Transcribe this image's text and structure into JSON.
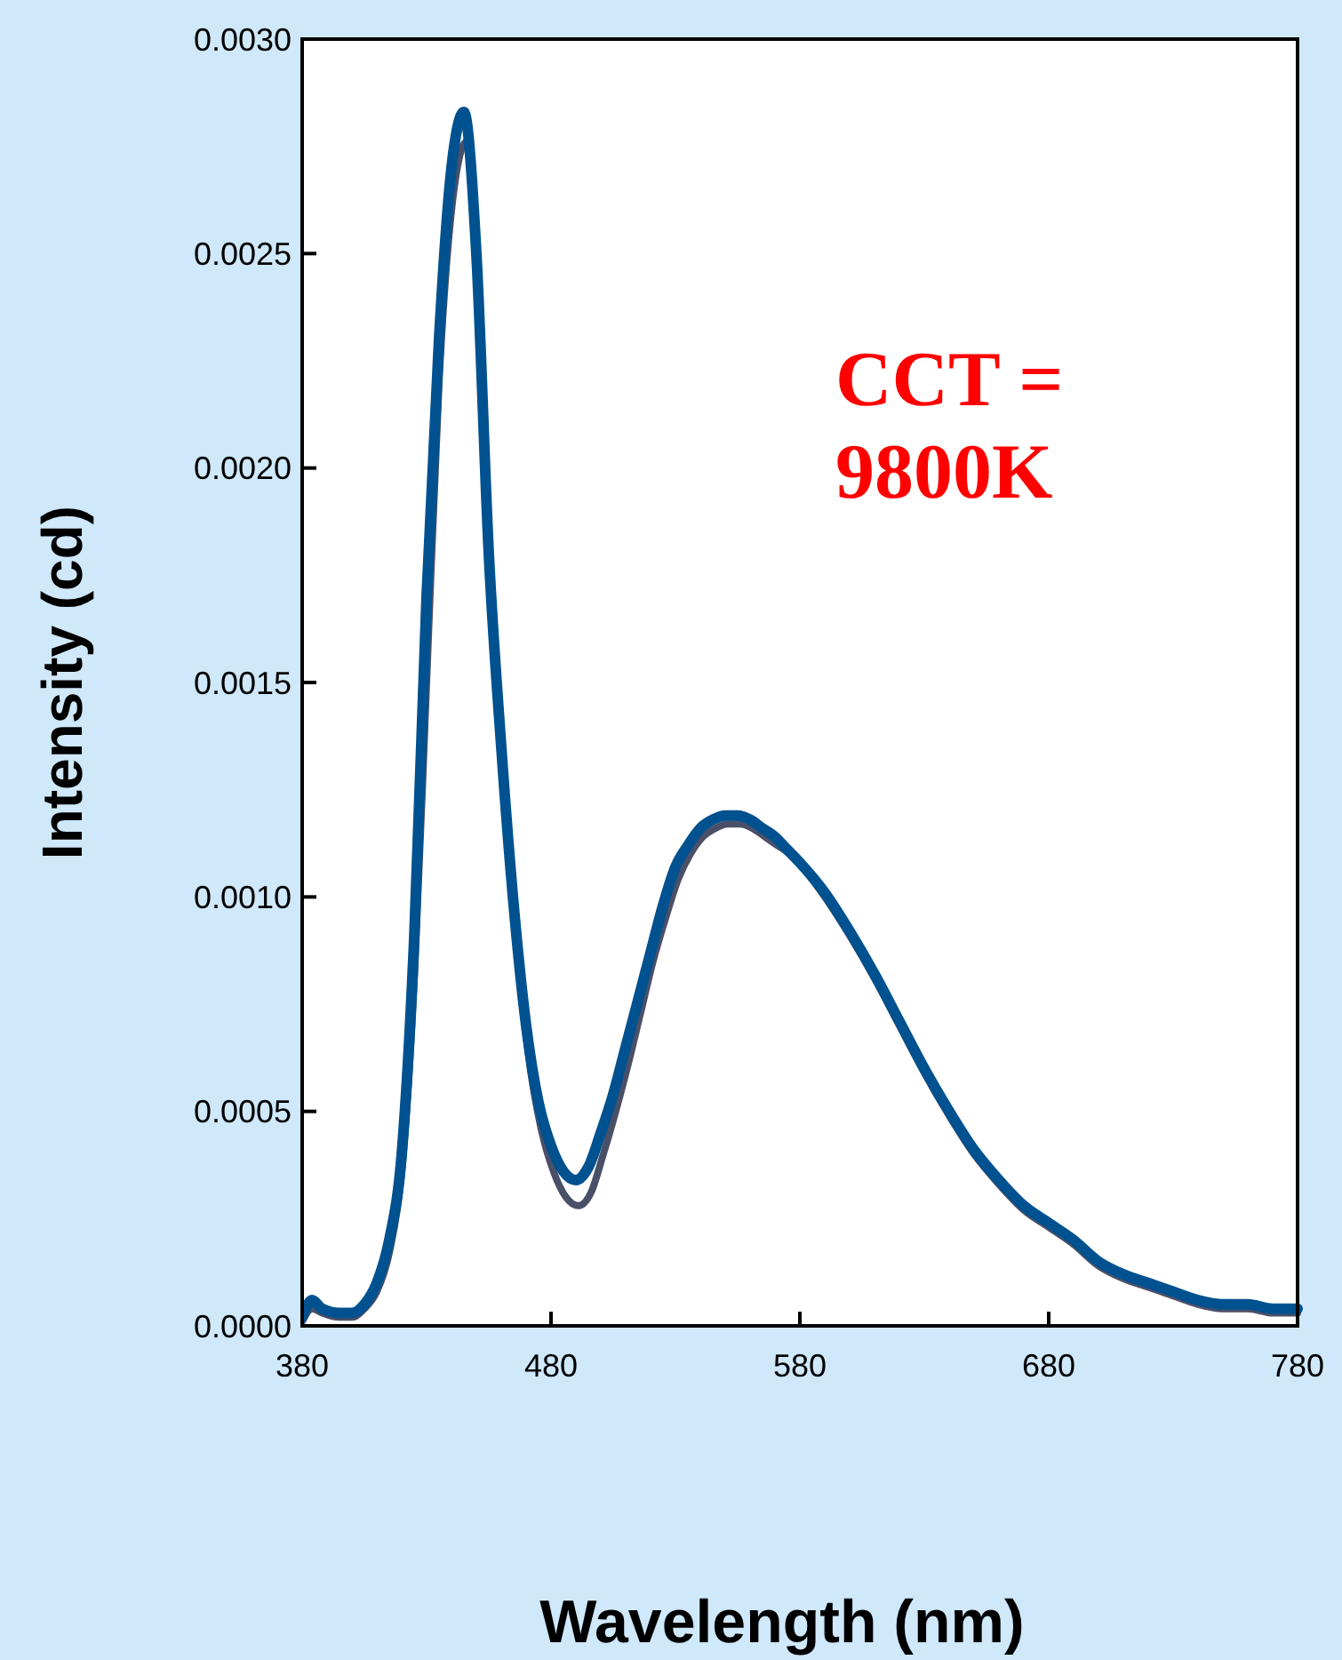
{
  "chart_data": {
    "type": "line",
    "xlabel": "Wavelength (nm)",
    "ylabel": "Intensity (cd)",
    "xlim": [
      380,
      780
    ],
    "xticks": [
      380,
      480,
      580,
      680,
      780
    ],
    "ylim": [
      0,
      0.003
    ],
    "yticks": [
      {
        "value": 0,
        "label": "0.0000"
      },
      {
        "value": 0.0005,
        "label": "0.0005"
      },
      {
        "value": 0.001,
        "label": "0.0010"
      },
      {
        "value": 0.0015,
        "label": "0.0015"
      },
      {
        "value": 0.002,
        "label": "0.0020"
      },
      {
        "value": 0.0025,
        "label": "0.0025"
      },
      {
        "value": 0.003,
        "label": "0.0030"
      }
    ],
    "grid": false,
    "annotations": [
      "CCT =\n9800K"
    ],
    "series": [
      {
        "color": "#4a5068",
        "x": [
          380,
          384,
          388,
          395,
          400,
          405,
          410,
          415,
          420,
          425,
          430,
          435,
          440,
          446,
          451,
          456,
          461,
          466,
          471,
          476,
          481,
          486,
          491,
          496,
          501,
          506,
          511,
          516,
          521,
          526,
          531,
          536,
          541,
          546,
          551,
          556,
          561,
          566,
          571,
          576,
          581,
          590,
          600,
          610,
          620,
          630,
          640,
          650,
          660,
          670,
          680,
          690,
          700,
          710,
          720,
          730,
          740,
          750,
          760,
          770,
          780
        ],
        "values": [
          1e-05,
          4e-05,
          3e-05,
          2e-05,
          2e-05,
          4e-05,
          8e-05,
          0.00017,
          0.00036,
          0.0008,
          0.0015,
          0.0022,
          0.0026,
          0.00276,
          0.0024,
          0.0017,
          0.0013,
          0.00093,
          0.00063,
          0.00046,
          0.00036,
          0.0003,
          0.00028,
          0.00031,
          0.0004,
          0.0005,
          0.00061,
          0.00073,
          0.00085,
          0.00095,
          0.00104,
          0.0011,
          0.00114,
          0.00116,
          0.00117,
          0.00117,
          0.00116,
          0.00114,
          0.00112,
          0.0011,
          0.00107,
          0.001,
          0.00091,
          0.00081,
          0.0007,
          0.00059,
          0.00049,
          0.0004,
          0.00033,
          0.00027,
          0.00023,
          0.00019,
          0.00014,
          0.00011,
          9e-05,
          7e-05,
          5e-05,
          4e-05,
          4e-05,
          3e-05,
          3e-05
        ]
      },
      {
        "color": "#00518f",
        "x": [
          380,
          384,
          388,
          395,
          400,
          405,
          410,
          415,
          420,
          425,
          430,
          435,
          440,
          445,
          450,
          455,
          460,
          465,
          470,
          475,
          480,
          485,
          490,
          495,
          500,
          505,
          510,
          515,
          520,
          525,
          530,
          535,
          540,
          545,
          550,
          555,
          560,
          565,
          570,
          575,
          580,
          590,
          600,
          610,
          620,
          630,
          640,
          650,
          660,
          670,
          680,
          690,
          700,
          710,
          720,
          730,
          740,
          750,
          760,
          770,
          780
        ],
        "values": [
          2e-05,
          6e-05,
          4e-05,
          3e-05,
          3e-05,
          5e-05,
          0.0001,
          0.0002,
          0.0004,
          0.0009,
          0.0017,
          0.0023,
          0.0027,
          0.00283,
          0.0025,
          0.0018,
          0.00135,
          0.00098,
          0.0007,
          0.00052,
          0.00042,
          0.00036,
          0.00034,
          0.00037,
          0.00045,
          0.00054,
          0.00065,
          0.00076,
          0.00087,
          0.00098,
          0.00107,
          0.00112,
          0.00116,
          0.00118,
          0.00119,
          0.00119,
          0.00118,
          0.00116,
          0.00114,
          0.00111,
          0.00108,
          0.00101,
          0.00092,
          0.00082,
          0.00071,
          0.0006,
          0.0005,
          0.00041,
          0.00034,
          0.00028,
          0.00024,
          0.0002,
          0.00015,
          0.00012,
          0.0001,
          8e-05,
          6e-05,
          5e-05,
          5e-05,
          4e-05,
          4e-05
        ]
      }
    ]
  }
}
